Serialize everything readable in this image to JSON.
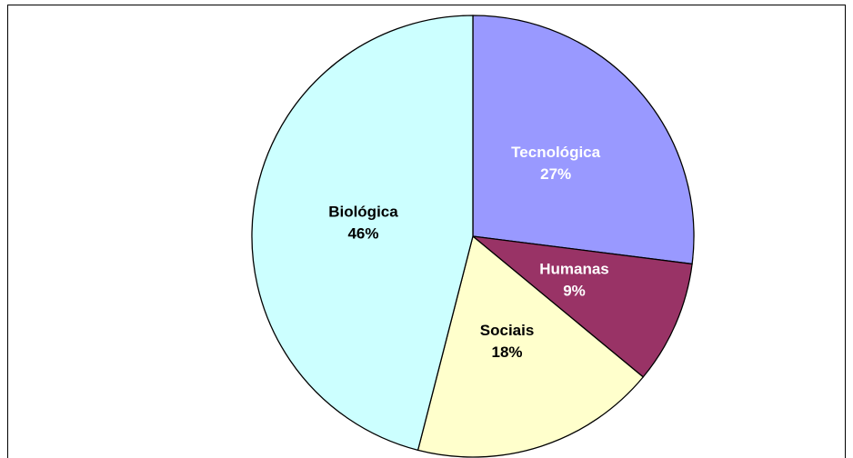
{
  "chart_data": {
    "type": "pie",
    "categories": [
      "Tecnológica",
      "Humanas",
      "Sociais",
      "Biológica"
    ],
    "values": [
      27,
      9,
      18,
      46
    ],
    "value_labels": [
      "27%",
      "9%",
      "18%",
      "46%"
    ],
    "colors": [
      "#9999ff",
      "#993366",
      "#ffffcc",
      "#ccffff"
    ],
    "label_colors": [
      "#ffffff",
      "#ffffff",
      "#000000",
      "#000000"
    ]
  }
}
